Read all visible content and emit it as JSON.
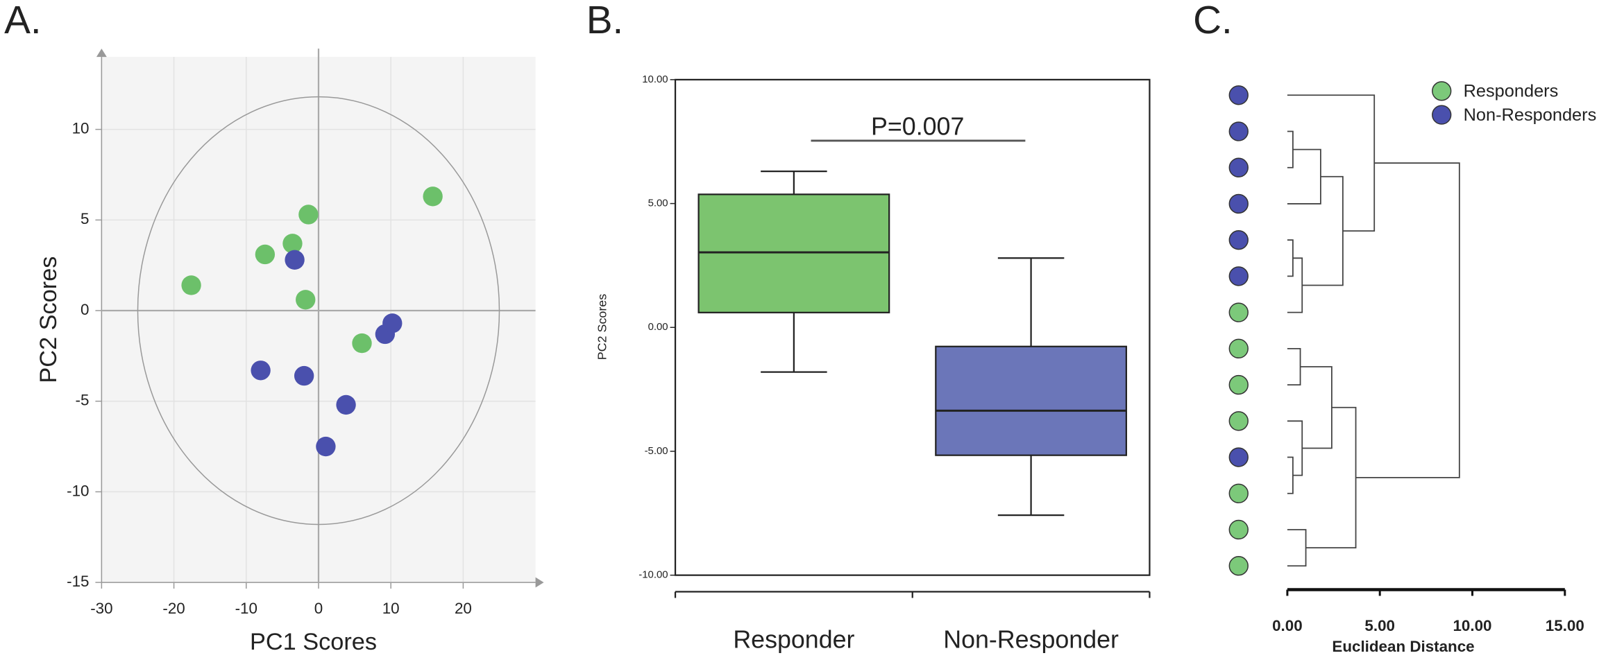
{
  "chart_data": [
    {
      "type": "scatter",
      "panel": "A.",
      "xlabel": "PC1 Scores",
      "ylabel": "PC2 Scores",
      "xlim": [
        -30,
        30
      ],
      "ylim": [
        -15,
        14
      ],
      "xticks": [
        -30,
        -20,
        -10,
        0,
        10,
        20
      ],
      "yticks": [
        -15,
        -10,
        -5,
        0,
        5,
        10
      ],
      "ellipse": [
        25,
        11.8
      ],
      "series": [
        {
          "color": "#6cc06a",
          "x": [
            -17.6,
            -7.4,
            -3.6,
            -1.4,
            -1.8,
            6.0,
            15.8
          ],
          "values": [
            1.4,
            3.1,
            3.7,
            5.3,
            0.6,
            -1.8,
            6.3
          ]
        },
        {
          "color": "#4a50ad",
          "x": [
            -3.3,
            -8.0,
            -2.0,
            9.2,
            10.2,
            3.8,
            1.0
          ],
          "values": [
            2.8,
            -3.3,
            -3.6,
            -1.3,
            -0.7,
            -5.2,
            -7.5
          ]
        }
      ]
    },
    {
      "type": "box",
      "panel": "B.",
      "ylabel": "PC2 Scores",
      "annotation": "P=0.007",
      "categories": [
        "Responder",
        "Non-Responder"
      ],
      "ylim": [
        -10,
        10
      ],
      "yticks": [
        {
          "value": -10,
          "label": "-10.00"
        },
        {
          "value": -5,
          "label": "-5.00"
        },
        {
          "value": 0,
          "label": "0.00"
        },
        {
          "value": 5,
          "label": "5.00"
        },
        {
          "value": 10,
          "label": "10.00"
        }
      ],
      "boxes": [
        {
          "color": "#7cc46f",
          "min": -1.8,
          "q1": 0.6,
          "median": 3.03,
          "q3": 5.37,
          "max": 6.3
        },
        {
          "color": "#6b76b9",
          "min": -7.58,
          "q1": -5.16,
          "median": -3.36,
          "q3": -0.77,
          "max": 2.8
        }
      ]
    },
    {
      "type": "dendrogram",
      "panel": "C.",
      "xlabel": "Euclidean Distance",
      "xlim": [
        0,
        15
      ],
      "xticks": [
        {
          "value": 0,
          "label": "0.00"
        },
        {
          "value": 5,
          "label": "5.00"
        },
        {
          "value": 10,
          "label": "10.00"
        },
        {
          "value": 15,
          "label": "15.00"
        }
      ],
      "series": [
        {
          "name": "Responders",
          "color": "#7cc97a"
        },
        {
          "name": "Non-Responders",
          "color": "#4a50ad"
        }
      ],
      "leaves": [
        1,
        1,
        1,
        1,
        1,
        1,
        0,
        0,
        0,
        0,
        1,
        0,
        0,
        0
      ],
      "merges": [
        [
          1,
          2,
          0.3
        ],
        [
          14,
          3,
          1.8
        ],
        [
          4,
          5,
          0.3
        ],
        [
          16,
          6,
          0.8
        ],
        [
          15,
          17,
          3.0
        ],
        [
          0,
          18,
          4.7
        ],
        [
          7,
          8,
          0.7
        ],
        [
          10,
          11,
          0.3
        ],
        [
          9,
          21,
          0.8
        ],
        [
          20,
          22,
          2.4
        ],
        [
          12,
          13,
          1.0
        ],
        [
          23,
          24,
          3.7
        ],
        [
          19,
          25,
          9.3
        ]
      ]
    }
  ]
}
